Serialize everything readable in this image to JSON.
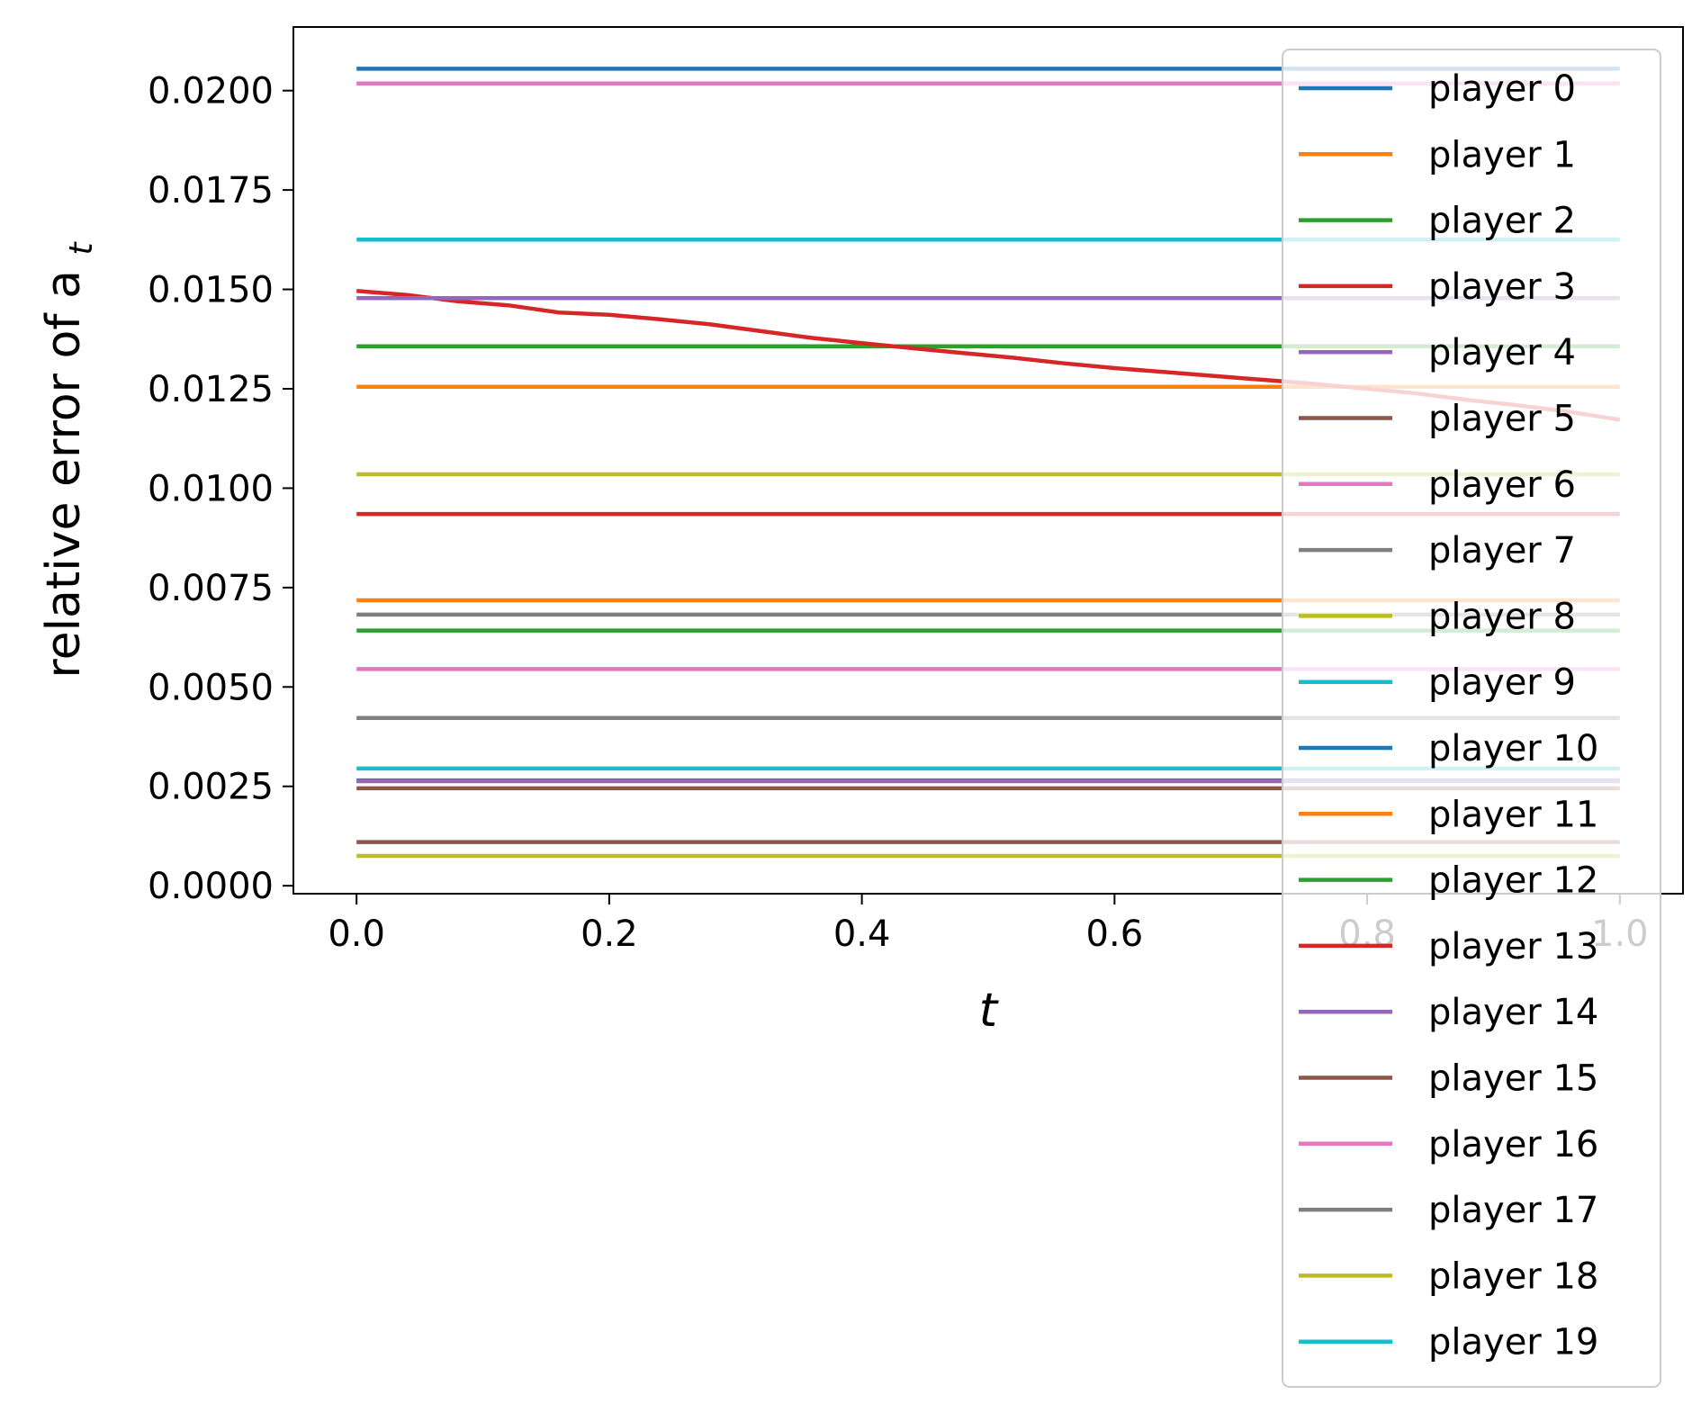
{
  "chart_data": {
    "type": "line",
    "title": "",
    "xlabel": "t",
    "ylabel": "relative error of a",
    "ylabel_subscript": "t",
    "xlim": [
      -0.05,
      1.05
    ],
    "ylim": [
      -0.0002,
      0.0216
    ],
    "xticks": [
      0.0,
      0.2,
      0.4,
      0.6,
      0.8,
      1.0
    ],
    "xtick_labels": [
      "0.0",
      "0.2",
      "0.4",
      "0.6",
      "0.8",
      "1.0"
    ],
    "yticks": [
      0.0,
      0.0025,
      0.005,
      0.0075,
      0.01,
      0.0125,
      0.015,
      0.0175,
      0.02
    ],
    "ytick_labels": [
      "0.0000",
      "0.0025",
      "0.0050",
      "0.0075",
      "0.0100",
      "0.0125",
      "0.0150",
      "0.0175",
      "0.0200"
    ],
    "grid": false,
    "legend_position": "right",
    "x": [
      0.0,
      1.0
    ],
    "series": [
      {
        "name": "player 0",
        "color": "#1f77b4",
        "values": [
          0.02055,
          0.02055
        ]
      },
      {
        "name": "player 1",
        "color": "#ff7f0e",
        "values": [
          0.01255,
          0.01255
        ]
      },
      {
        "name": "player 2",
        "color": "#2ca02c",
        "values": [
          0.01357,
          0.01357
        ]
      },
      {
        "name": "player 3",
        "color": "#d62728",
        "x": [
          0.0,
          0.04,
          0.08,
          0.12,
          0.16,
          0.2,
          0.24,
          0.28,
          0.32,
          0.36,
          0.4,
          0.44,
          0.48,
          0.52,
          0.56,
          0.6,
          0.64,
          0.68,
          0.72,
          0.76,
          0.8,
          0.84,
          0.88,
          0.92,
          0.96,
          1.0
        ],
        "values": [
          0.01496,
          0.01486,
          0.0147,
          0.0146,
          0.01442,
          0.01436,
          0.01425,
          0.01412,
          0.01395,
          0.01378,
          0.01365,
          0.01352,
          0.0134,
          0.01328,
          0.01314,
          0.01302,
          0.01292,
          0.01282,
          0.01272,
          0.01262,
          0.0125,
          0.01238,
          0.01222,
          0.01208,
          0.01192,
          0.01172
        ]
      },
      {
        "name": "player 4",
        "color": "#9467bd",
        "values": [
          0.01478,
          0.01478
        ]
      },
      {
        "name": "player 5",
        "color": "#8c564b",
        "values": [
          0.0011,
          0.0011
        ]
      },
      {
        "name": "player 6",
        "color": "#e377c2",
        "values": [
          0.02018,
          0.02018
        ]
      },
      {
        "name": "player 7",
        "color": "#7f7f7f",
        "values": [
          0.00682,
          0.00682
        ]
      },
      {
        "name": "player 8",
        "color": "#bcbd22",
        "values": [
          0.01035,
          0.01035
        ]
      },
      {
        "name": "player 9",
        "color": "#17becf",
        "values": [
          0.01625,
          0.01625
        ]
      },
      {
        "name": "player 10",
        "color": "#1f77b4",
        "values": [
          0.00265,
          0.00265
        ]
      },
      {
        "name": "player 11",
        "color": "#ff7f0e",
        "values": [
          0.00718,
          0.00718
        ]
      },
      {
        "name": "player 12",
        "color": "#2ca02c",
        "values": [
          0.00642,
          0.00642
        ]
      },
      {
        "name": "player 13",
        "color": "#d62728",
        "values": [
          0.00935,
          0.00935
        ]
      },
      {
        "name": "player 14",
        "color": "#9467bd",
        "values": [
          0.00263,
          0.00263
        ]
      },
      {
        "name": "player 15",
        "color": "#8c564b",
        "values": [
          0.00245,
          0.00245
        ]
      },
      {
        "name": "player 16",
        "color": "#e377c2",
        "values": [
          0.00545,
          0.00545
        ]
      },
      {
        "name": "player 17",
        "color": "#7f7f7f",
        "values": [
          0.00422,
          0.00422
        ]
      },
      {
        "name": "player 18",
        "color": "#bcbd22",
        "values": [
          0.00075,
          0.00075
        ]
      },
      {
        "name": "player 19",
        "color": "#17becf",
        "values": [
          0.00295,
          0.00295
        ]
      }
    ]
  }
}
